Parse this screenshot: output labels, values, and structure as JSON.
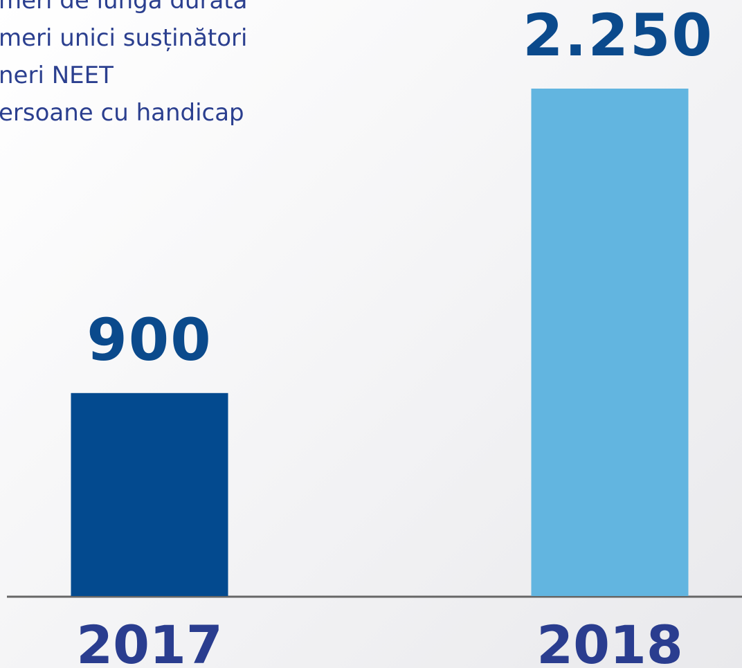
{
  "chart_data": {
    "type": "bar",
    "annotations": [
      "meri de lungă durată",
      "meri unici susținători",
      "neri NEET",
      "ersoane cu handicap"
    ],
    "categories": [
      "2017",
      "2018"
    ],
    "values": [
      900,
      2250
    ],
    "value_labels": [
      "900",
      "2.250"
    ],
    "colors": [
      "#034a8f",
      "#62b5e0"
    ]
  }
}
